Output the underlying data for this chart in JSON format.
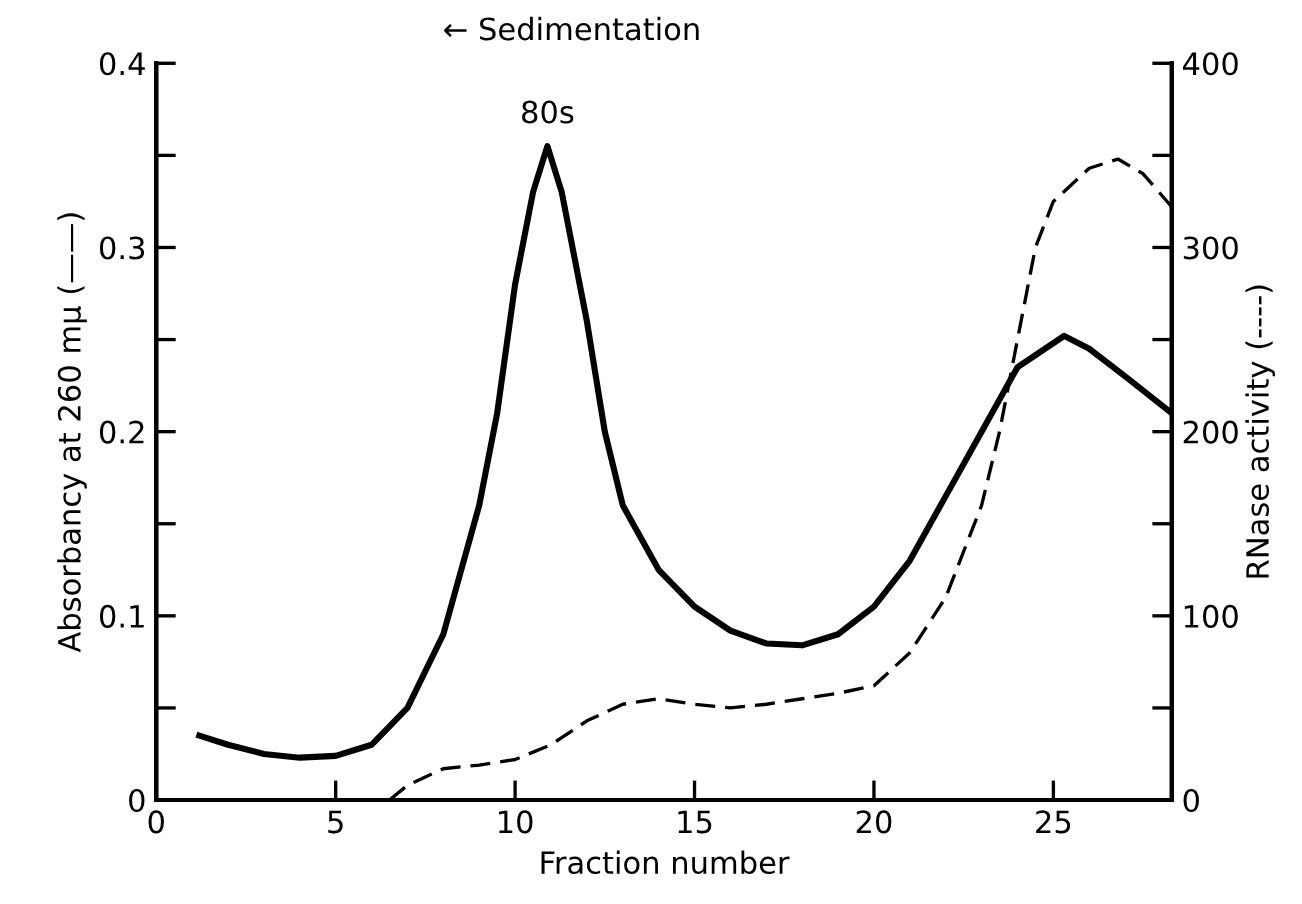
{
  "chart_data": {
    "type": "line",
    "xlabel": "Fraction number",
    "ylabel": "Absorbancy at 260 mμ (——)",
    "y2label": "RNase activity (----)",
    "annotations": [
      {
        "text": "80s",
        "x": 10.9,
        "y": 0.355
      },
      "← Sedimentation"
    ],
    "xlim": [
      0,
      28.3
    ],
    "xticks": [
      0,
      5,
      10,
      15,
      20,
      25
    ],
    "ylim": [
      0,
      0.4
    ],
    "yticks": [
      0,
      {
        "value": 0.05,
        "label": null
      },
      0.1,
      {
        "value": 0.15,
        "label": null
      },
      0.2,
      {
        "value": 0.25,
        "label": null
      },
      0.3,
      {
        "value": 0.35,
        "label": null
      },
      0.4
    ],
    "y2lim": [
      0,
      400
    ],
    "y2ticks": [
      0,
      {
        "value": 50,
        "label": null
      },
      100,
      {
        "value": 150,
        "label": null
      },
      200,
      {
        "value": 250,
        "label": null
      },
      300,
      {
        "value": 350,
        "label": null
      },
      400
    ],
    "grid": false,
    "legend": false,
    "series": [
      {
        "color": "#000000",
        "line_style": "solid",
        "x": [
          1.2,
          2,
          3,
          4,
          5,
          6,
          7,
          8,
          9,
          9.5,
          10,
          10.5,
          10.9,
          11.3,
          12,
          12.5,
          13,
          14,
          15,
          16,
          17,
          18,
          19,
          20,
          21,
          22,
          23,
          24,
          25.3,
          26,
          27,
          28.3
        ],
        "values": [
          0.035,
          0.03,
          0.025,
          0.023,
          0.024,
          0.03,
          0.05,
          0.09,
          0.16,
          0.21,
          0.28,
          0.33,
          0.355,
          0.33,
          0.26,
          0.2,
          0.16,
          0.125,
          0.105,
          0.092,
          0.085,
          0.084,
          0.09,
          0.105,
          0.13,
          0.165,
          0.2,
          0.235,
          0.252,
          0.245,
          0.23,
          0.21
        ]
      },
      {
        "color": "#000000",
        "line_style": "dashed",
        "axis": "y2",
        "x": [
          6.5,
          7,
          8,
          9,
          10,
          11,
          12,
          13,
          14,
          15,
          16,
          17,
          18,
          19,
          20,
          21,
          22,
          23,
          23.5,
          24,
          24.5,
          25,
          26,
          26.8,
          27.5,
          28.3
        ],
        "values": [
          0,
          8,
          17,
          19,
          22,
          30,
          43,
          52,
          55,
          52,
          50,
          52,
          55,
          58,
          62,
          80,
          110,
          160,
          200,
          250,
          300,
          325,
          343,
          348,
          340,
          322
        ]
      }
    ]
  }
}
